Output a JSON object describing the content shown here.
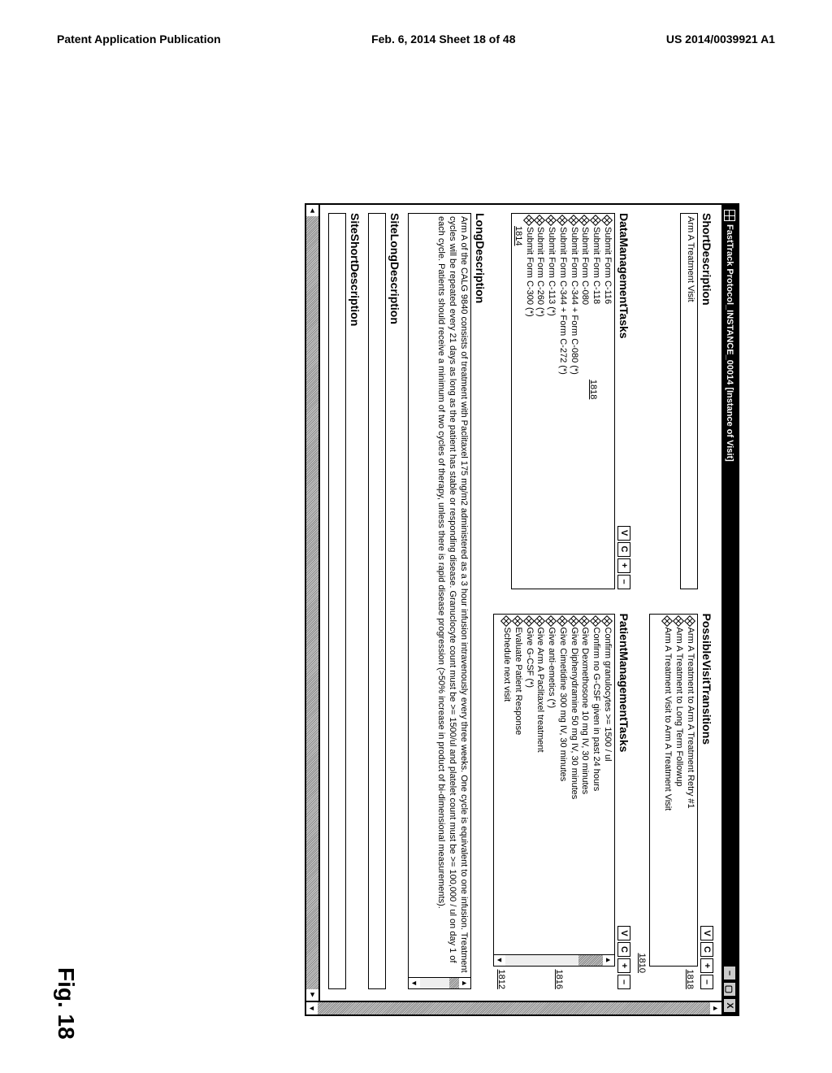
{
  "page_header": {
    "left": "Patent Application Publication",
    "center": "Feb. 6, 2014   Sheet 18 of 48",
    "right": "US 2014/0039921 A1"
  },
  "figure_label": "Fig. 18",
  "window": {
    "title": "FastTrack Protocol_INSTANCE_00014   [Instance of Visit]"
  },
  "mini_buttons": {
    "v": "V",
    "c": "C",
    "plus": "+",
    "minus": "–"
  },
  "short_desc": {
    "label": "ShortDescription",
    "value": "Arm A Treatment Visit"
  },
  "transitions": {
    "label": "PossibleVisitTransitions",
    "items": [
      "Arm A Treatment to Arm A Treatment Retry #1",
      "Arm A Treatment to Long Term Followup",
      "Arm A Treatment Visit to Arm A Treatment Visit"
    ],
    "ref_side": "1818",
    "ref_below": "1810"
  },
  "data_tasks": {
    "label": "DataManagementTasks",
    "items": [
      "Submit Form C-116",
      "Submit Form C-118",
      "Submit Form C-080",
      "Submit Form C-344 + Form C-080 (*)",
      "Submit Form C-344 + Form C-272 (*)",
      "Submit Form C-113 (*)",
      "Submit Form C-260 (*)",
      "Submit Form C-300 (*)"
    ],
    "ref_side": "1818",
    "ref_below": "1814"
  },
  "patient_tasks": {
    "label": "PatientManagementTasks",
    "items": [
      "Confirm granulocytes >= 1500 / ul",
      "Confirm no G-CSF given in past 24 hours",
      "Give Dexmethosone 10 mg IV, 30 minutes",
      "Give Diphenydramine 50 mg IV, 30 minutes",
      "Give Cimetidine 300 mg IV, 30 minutes",
      "Give anti-emetics (*)",
      "Give Arm A Paclitaxel treatment",
      "Give G-CSF (*)",
      "Evaluate Patient Response",
      "Schedule next visit"
    ],
    "ref_side": "1816",
    "ref_below": "1812"
  },
  "long_desc": {
    "label": "LongDescription",
    "value": "Arm A of the CALG 9840 consists of treatment with Paclitaxel 175 mg/m2 administered as a 3 hour infusion intravenously every three weeks. One cycle is equivalent to one infusion. Treatment cycles will be repeated every 21 days as long as the patient has stable or responding disease. Granuclocyte count must be >= 1500/ul and platelet count must be >= 100,000 / ul on day 1 of each cycle. Patients should receive a minimum of two cycles of therapy, unless there is rapid disease progression (>50% increase in product of bi-dimensional measurements)."
  },
  "site_long": {
    "label": "SiteLongDescription"
  },
  "site_short": {
    "label": "SiteShortDescription"
  }
}
